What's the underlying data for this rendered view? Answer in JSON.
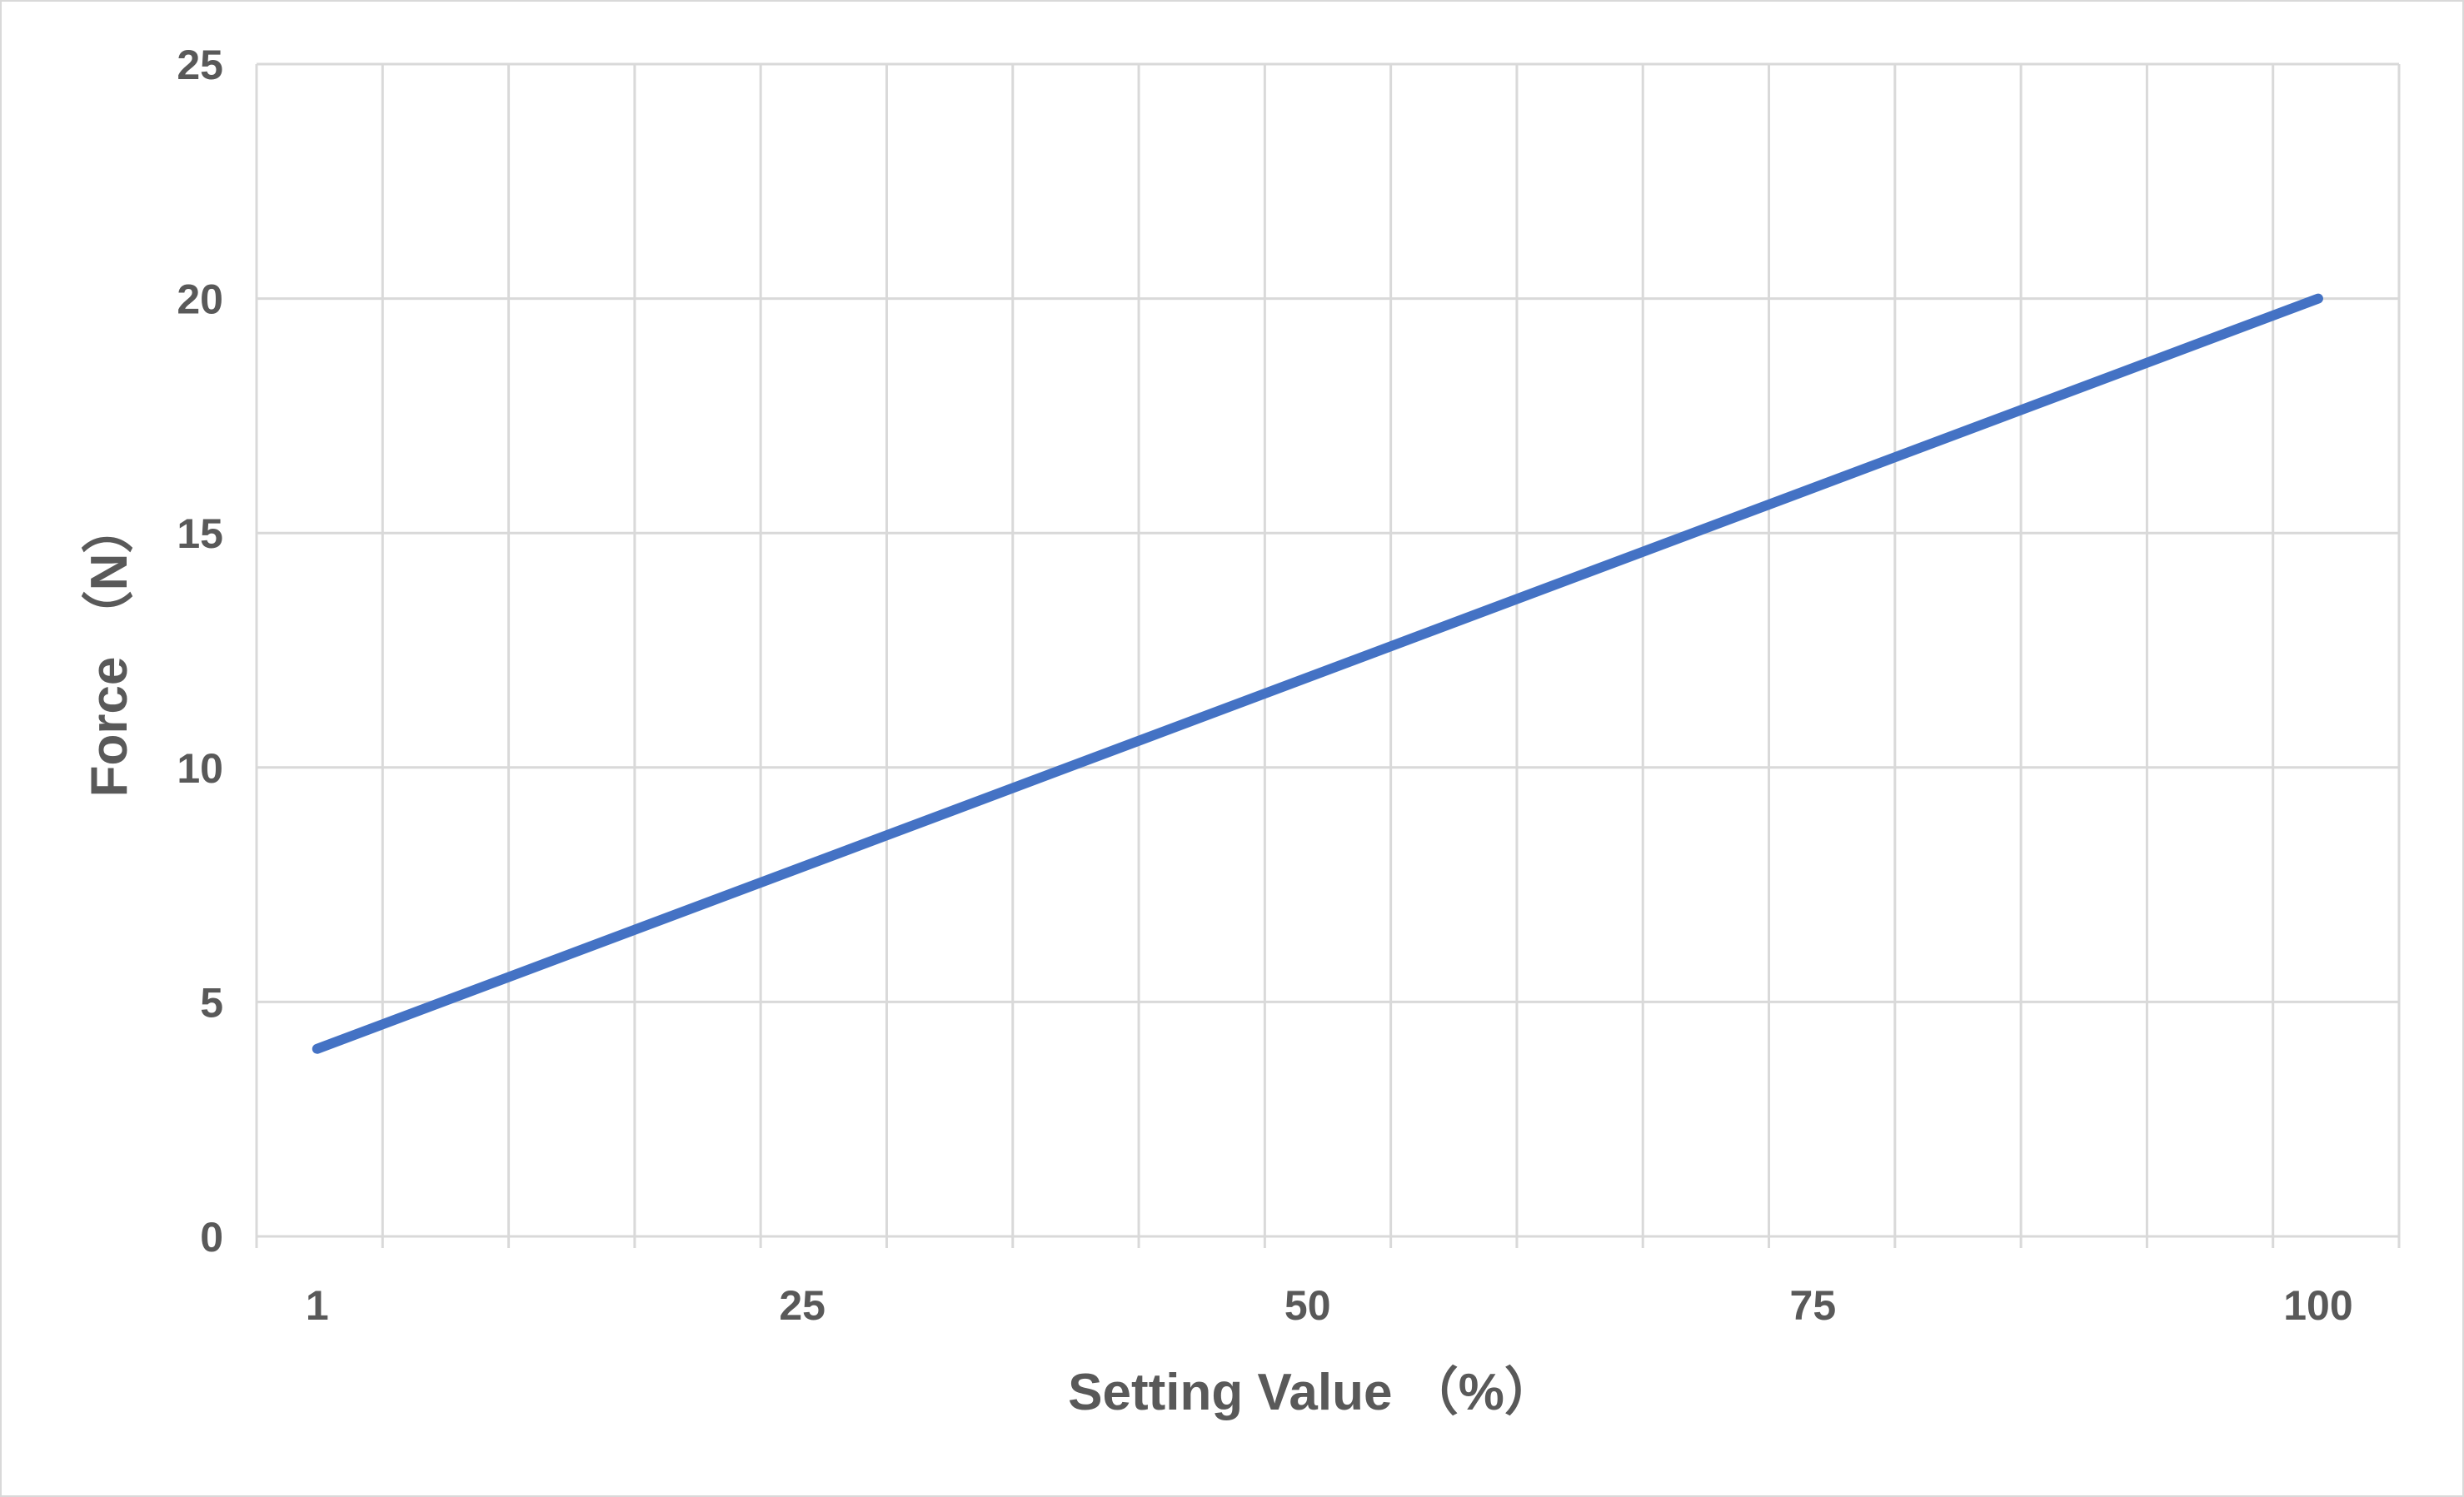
{
  "chart_data": {
    "type": "line",
    "title": "",
    "xlabel": "Setting Value （%）",
    "ylabel": "Force （N）",
    "x_ticks": [
      "1",
      "25",
      "50",
      "75",
      "100"
    ],
    "x_tick_values": [
      1,
      25,
      50,
      75,
      100
    ],
    "xlim": [
      -2,
      104
    ],
    "y_ticks": [
      "0",
      "5",
      "10",
      "15",
      "20",
      "25"
    ],
    "y_tick_values": [
      0,
      5,
      10,
      15,
      20,
      25
    ],
    "ylim": [
      0,
      25
    ],
    "grid": true,
    "vertical_gridline_count": 17,
    "legend": "none",
    "series": [
      {
        "color": "#4472C4",
        "points": [
          {
            "x": 1,
            "y": 4
          },
          {
            "x": 100,
            "y": 20
          }
        ]
      }
    ]
  }
}
